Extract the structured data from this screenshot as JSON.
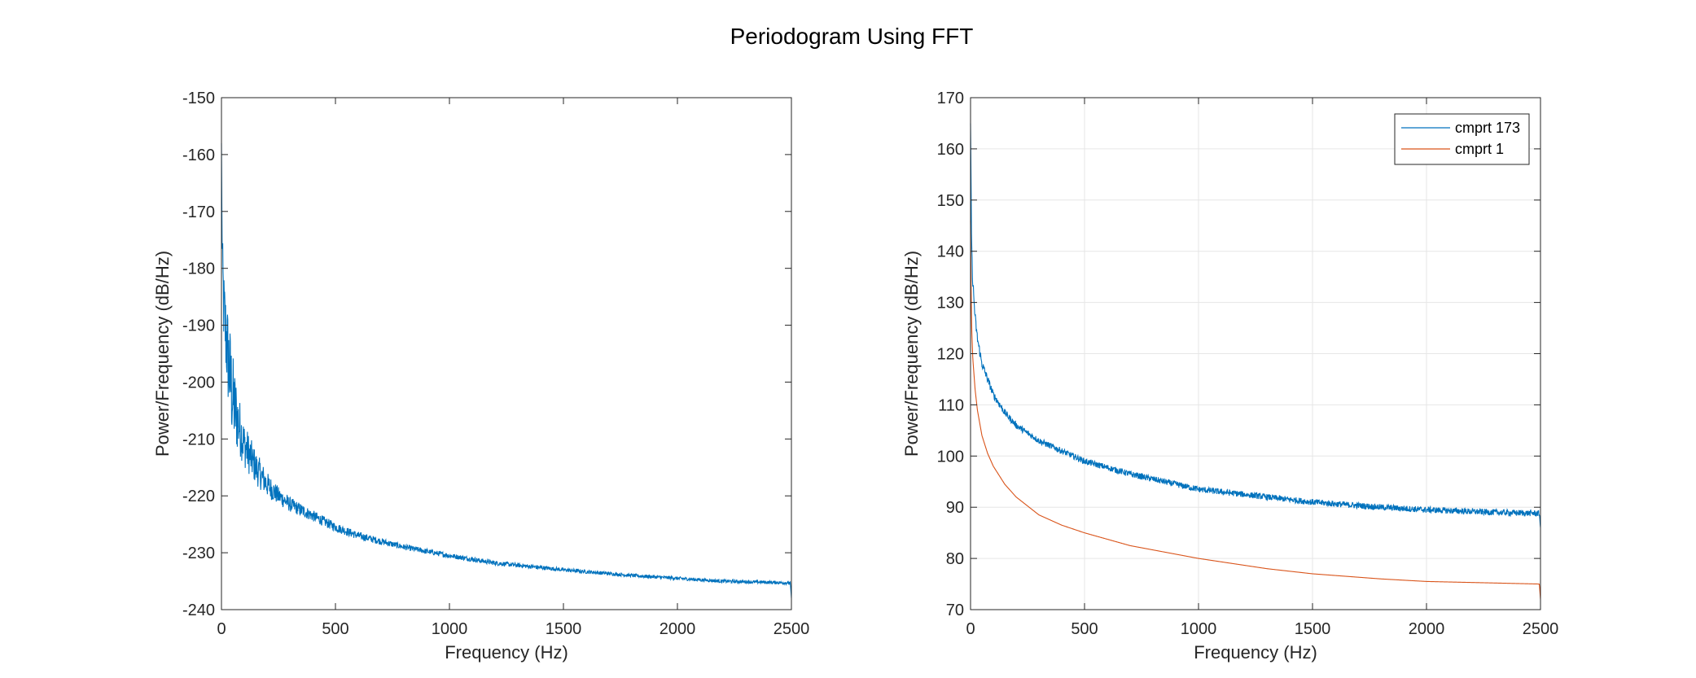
{
  "figure_title": "Periodogram Using FFT",
  "colors": {
    "series1": "#0072BD",
    "series2": "#D95319",
    "grid": "#e6e6e6",
    "axis": "#262626"
  },
  "chart_data": [
    {
      "type": "line",
      "xlabel": "Frequency (Hz)",
      "ylabel": "Power/Frequency (dB/Hz)",
      "xlim": [
        0,
        2500
      ],
      "ylim": [
        -240,
        -150
      ],
      "xticks": [
        0,
        500,
        1000,
        1500,
        2000,
        2500
      ],
      "yticks": [
        -240,
        -230,
        -220,
        -210,
        -200,
        -190,
        -180,
        -170,
        -160,
        -150
      ],
      "grid": false,
      "legend": null,
      "series": [
        {
          "color": "#0072BD",
          "x": [
            0,
            2,
            5,
            10,
            20,
            30,
            40,
            50,
            60,
            80,
            100,
            125,
            150,
            200,
            250,
            300,
            400,
            500,
            600,
            700,
            800,
            1000,
            1200,
            1500,
            1800,
            2000,
            2200,
            2400,
            2495,
            2500
          ],
          "y": [
            -158,
            -172,
            -180,
            -187,
            -192,
            -196,
            -200,
            -203,
            -205,
            -208,
            -211,
            -213,
            -215,
            -218,
            -220,
            -221.5,
            -223.5,
            -225.5,
            -227,
            -228,
            -229,
            -230.5,
            -231.8,
            -233,
            -234,
            -234.5,
            -235,
            -235.2,
            -235.3,
            -238
          ],
          "noise": [
            0,
            3,
            5,
            7,
            8,
            9,
            9,
            8,
            7,
            5,
            4,
            3.5,
            3,
            2.2,
            1.6,
            1.3,
            1.0,
            0.8,
            0.7,
            0.6,
            0.5,
            0.45,
            0.4,
            0.35,
            0.3,
            0.3,
            0.3,
            0.3,
            0.3,
            0
          ]
        }
      ]
    },
    {
      "type": "line",
      "xlabel": "Frequency (Hz)",
      "ylabel": "Power/Frequency (dB/Hz)",
      "xlim": [
        0,
        2500
      ],
      "ylim": [
        70,
        170
      ],
      "xticks": [
        0,
        500,
        1000,
        1500,
        2000,
        2500
      ],
      "yticks": [
        70,
        80,
        90,
        100,
        110,
        120,
        130,
        140,
        150,
        160,
        170
      ],
      "grid": true,
      "legend": "top-right",
      "series": [
        {
          "name": "cmprt 173",
          "color": "#0072BD",
          "x": [
            0,
            5,
            10,
            20,
            30,
            50,
            75,
            100,
            150,
            200,
            300,
            400,
            500,
            700,
            1000,
            1300,
            1500,
            1800,
            2000,
            2300,
            2495,
            2500
          ],
          "y": [
            165,
            140,
            134,
            127,
            123,
            118,
            115,
            112,
            108.5,
            106,
            103,
            101,
            99,
            96.5,
            93.5,
            92,
            91,
            90,
            89.5,
            89,
            88.8,
            86
          ],
          "noise": [
            0,
            1.5,
            1.5,
            1.2,
            1.0,
            0.9,
            0.8,
            0.7,
            0.7,
            0.6,
            0.6,
            0.6,
            0.6,
            0.6,
            0.6,
            0.6,
            0.6,
            0.6,
            0.6,
            0.6,
            0.6,
            0
          ]
        },
        {
          "name": "cmprt 1",
          "color": "#D95319",
          "x": [
            0,
            2,
            5,
            10,
            20,
            30,
            50,
            75,
            100,
            150,
            200,
            300,
            400,
            500,
            700,
            1000,
            1300,
            1500,
            1800,
            2000,
            2300,
            2495,
            2500
          ],
          "y": [
            146,
            135,
            125,
            119,
            113,
            109,
            104,
            100.5,
            98,
            94.5,
            92,
            88.5,
            86.5,
            85,
            82.5,
            80,
            78,
            77,
            76,
            75.5,
            75.2,
            75,
            72
          ],
          "noise": [
            0,
            0,
            0,
            0,
            0,
            0,
            0,
            0,
            0,
            0,
            0,
            0,
            0,
            0,
            0,
            0,
            0,
            0,
            0,
            0,
            0,
            0,
            0
          ]
        }
      ]
    }
  ]
}
